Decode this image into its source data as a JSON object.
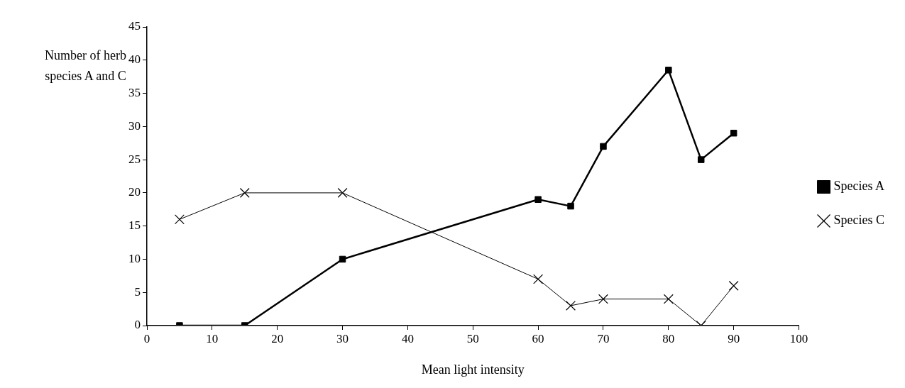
{
  "chart_data": {
    "type": "line",
    "xlabel": "Mean light intensity",
    "ylabel": "Number of herb species A and C",
    "x": [
      5,
      15,
      30,
      60,
      65,
      70,
      80,
      85,
      90
    ],
    "series": [
      {
        "name": "Species A",
        "color": "#000000",
        "marker": "square",
        "values": [
          0,
          0,
          10,
          19,
          18,
          27,
          38.5,
          25,
          29
        ]
      },
      {
        "name": "Species C",
        "color": "#000000",
        "marker": "cross",
        "values": [
          16,
          20,
          20,
          7,
          3,
          4,
          4,
          0,
          6
        ]
      }
    ],
    "xlim": [
      0,
      100
    ],
    "xticks": [
      0,
      10,
      20,
      30,
      40,
      50,
      60,
      70,
      80,
      90,
      100
    ],
    "ylim": [
      0,
      45
    ],
    "yticks": [
      0,
      5,
      10,
      15,
      20,
      25,
      30,
      35,
      40,
      45
    ],
    "grid": false,
    "legend": "right"
  }
}
